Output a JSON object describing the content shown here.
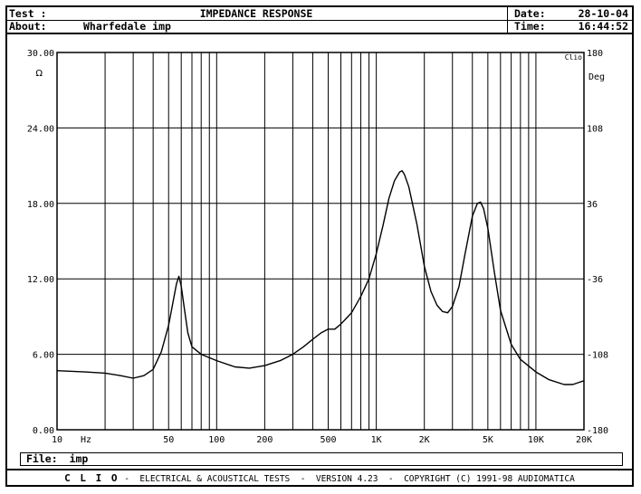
{
  "header": {
    "test_label": "Test :",
    "test_value": "",
    "title": "IMPEDANCE RESPONSE",
    "about_label": "About:",
    "about_value": "Wharfedale imp",
    "date_label": "Date:",
    "date_value": "28-10-04",
    "time_label": "Time:",
    "time_value": "16:44:52"
  },
  "file_bar": {
    "label": "File:",
    "value": "imp"
  },
  "footer": {
    "brand": "C L I O",
    "text": " -  ELECTRICAL & ACOUSTICAL TESTS  -  VERSION 4.23  -  COPYRIGHT (C) 1991-98 AUDIOMATICA"
  },
  "chart_data": {
    "type": "line",
    "x_scale": "log",
    "xlim": [
      10,
      20000
    ],
    "ylim": [
      0,
      30
    ],
    "y2lim": [
      -180,
      180
    ],
    "ylabel": "Ω",
    "y2label": "Deg",
    "xlabel": "Hz",
    "corner_label": "Clio",
    "grid": true,
    "x_ticks": [
      "10",
      "50",
      "100",
      "200",
      "500",
      "1K",
      "2K",
      "5K",
      "10K",
      "20K"
    ],
    "x_tick_values": [
      10,
      50,
      100,
      200,
      500,
      1000,
      2000,
      5000,
      10000,
      20000
    ],
    "y_ticks": [
      "0.00",
      "6.00",
      "12.00",
      "18.00",
      "24.00",
      "30.00"
    ],
    "y_tick_values": [
      0,
      6,
      12,
      18,
      24,
      30
    ],
    "y2_ticks": [
      "-180",
      "-108",
      "-36",
      "36",
      "108",
      "180"
    ],
    "series": [
      {
        "color": "#000000",
        "x": [
          10,
          15,
          20,
          25,
          30,
          35,
          40,
          45,
          50,
          53,
          56,
          58,
          60,
          63,
          66,
          70,
          80,
          100,
          130,
          160,
          200,
          250,
          300,
          350,
          400,
          450,
          500,
          550,
          600,
          700,
          800,
          900,
          1000,
          1100,
          1200,
          1300,
          1400,
          1450,
          1500,
          1600,
          1800,
          2000,
          2200,
          2400,
          2600,
          2800,
          3000,
          3300,
          3600,
          4000,
          4300,
          4500,
          4700,
          5000,
          5500,
          6000,
          7000,
          8000,
          10000,
          12000,
          15000,
          17000,
          20000
        ],
        "y": [
          4.7,
          4.6,
          4.5,
          4.3,
          4.1,
          4.3,
          4.8,
          6.2,
          8.3,
          10.0,
          11.6,
          12.2,
          11.4,
          9.5,
          7.7,
          6.6,
          6.0,
          5.5,
          5.0,
          4.9,
          5.1,
          5.5,
          6.0,
          6.6,
          7.2,
          7.7,
          8.0,
          8.0,
          8.4,
          9.3,
          10.6,
          12.0,
          14.0,
          16.2,
          18.4,
          19.8,
          20.5,
          20.6,
          20.3,
          19.3,
          16.3,
          13.0,
          11.0,
          9.9,
          9.4,
          9.3,
          9.8,
          11.4,
          14.0,
          17.0,
          18.0,
          18.1,
          17.6,
          16.0,
          12.5,
          9.5,
          6.8,
          5.6,
          4.6,
          4.0,
          3.6,
          3.6,
          3.9
        ]
      }
    ]
  }
}
